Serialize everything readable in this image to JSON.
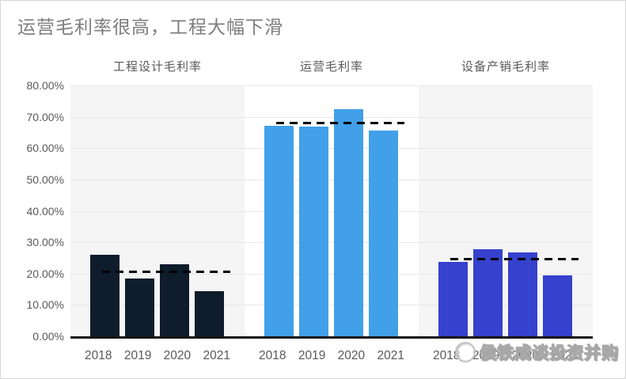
{
  "title": "运营毛利率很高，工程大幅下滑",
  "watermark": {
    "text": "侯铁成谈投资并购",
    "logo_icon": "profile-badge-icon"
  },
  "colors": {
    "title_text": "#7d7d7d",
    "axis_text": "#595959",
    "gridline": "#e8e8e8",
    "axis_line": "#141414",
    "avg_line": "#000000",
    "panel_gray": "#f5f5f6",
    "panel_white": "#ffffff",
    "series_engineering": "#0e1c2b",
    "series_operation": "#41a0e8",
    "series_equipment": "#3641cd"
  },
  "chart_data": {
    "type": "bar",
    "title": "运营毛利率很高，工程大幅下滑",
    "ylabel": "",
    "xlabel": "",
    "ylim": [
      0,
      80
    ],
    "ytick_step": 10,
    "ytick_labels": [
      "0.00%",
      "10.00%",
      "20.00%",
      "30.00%",
      "40.00%",
      "50.00%",
      "60.00%",
      "70.00%",
      "80.00%"
    ],
    "grid": true,
    "avg_line_style": "dashed-black",
    "categories": [
      "2018",
      "2019",
      "2020",
      "2021"
    ],
    "panels": [
      {
        "label": "工程设计毛利率",
        "color": "#0e1c2b",
        "background": "#f5f5f6",
        "values": [
          26.0,
          18.3,
          23.0,
          14.5
        ],
        "avg_line": 20.5
      },
      {
        "label": "运营毛利率",
        "color": "#41a0e8",
        "background": "#ffffff",
        "values": [
          67.2,
          67.0,
          72.5,
          65.6
        ],
        "avg_line": 68.0
      },
      {
        "label": "设备产销毛利率",
        "color": "#3641cd",
        "background": "#f5f5f6",
        "values": [
          23.6,
          27.8,
          26.7,
          19.5
        ],
        "avg_line": 24.5
      }
    ]
  }
}
